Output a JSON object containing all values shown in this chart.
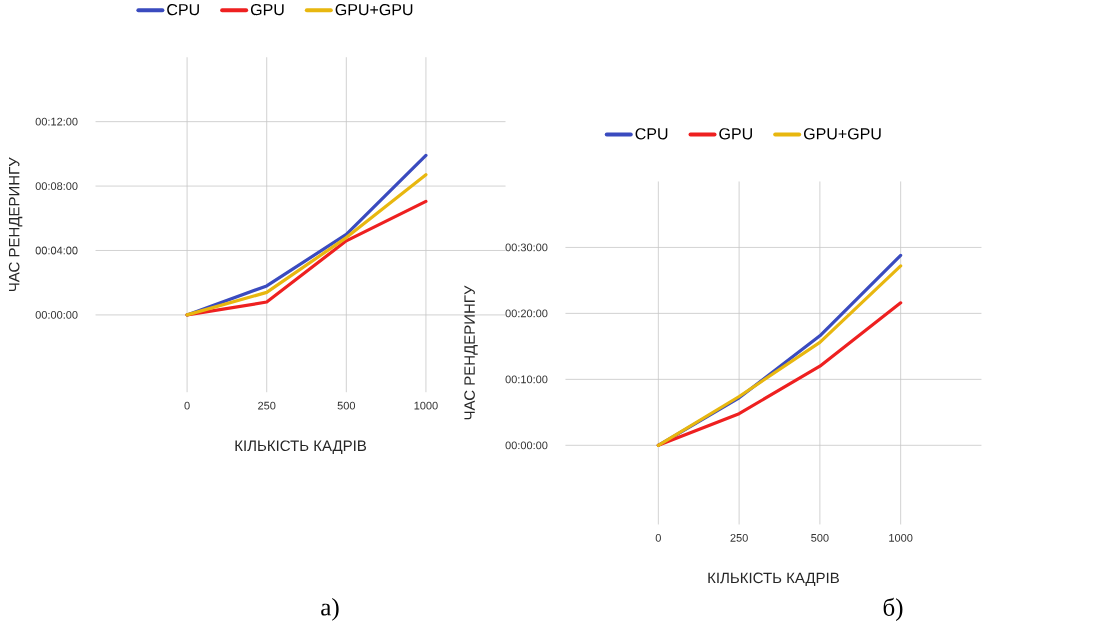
{
  "chart_data": [
    {
      "type": "line",
      "xlabel": "КІЛЬКІСТЬ КАДРІВ",
      "ylabel": "ЧАС РЕНДЕРИНГУ",
      "categories": [
        "0",
        "250",
        "500",
        "1000"
      ],
      "series": [
        {
          "name": "CPU",
          "color": "#3a4bbf",
          "values": [
            0,
            1.8,
            5.0,
            9.9
          ]
        },
        {
          "name": "GPU",
          "color": "#ee2020",
          "values": [
            0,
            0.8,
            4.6,
            7.05
          ]
        },
        {
          "name": "GPU+GPU",
          "color": "#e8b70f",
          "values": [
            0,
            1.4,
            4.8,
            8.7
          ]
        }
      ],
      "ylim": [
        -4.8,
        16
      ],
      "yticks": [
        {
          "value": 0,
          "label": "00:00:00"
        },
        {
          "value": 4,
          "label": "00:04:00"
        },
        {
          "value": 8,
          "label": "00:08:00"
        },
        {
          "value": 12,
          "label": "00:12:00"
        }
      ],
      "grid": true,
      "legend": "top",
      "marker": "none",
      "line_style": "solid",
      "annotations": [
        "а)"
      ]
    },
    {
      "type": "line",
      "xlabel": "КІЛЬКІСТЬ КАДРІВ",
      "ylabel": "ЧАС РЕНДЕРИНГУ",
      "categories": [
        "0",
        "250",
        "500",
        "1000"
      ],
      "series": [
        {
          "name": "CPU",
          "color": "#3a4bbf",
          "values": [
            0,
            7.2,
            16.6,
            28.8
          ]
        },
        {
          "name": "GPU",
          "color": "#ee2020",
          "values": [
            0,
            4.8,
            12.0,
            21.6
          ]
        },
        {
          "name": "GPU+GPU",
          "color": "#e8b70f",
          "values": [
            0,
            7.4,
            15.6,
            27.2
          ]
        }
      ],
      "ylim": [
        -12,
        40
      ],
      "yticks": [
        {
          "value": 0,
          "label": "00:00:00"
        },
        {
          "value": 10,
          "label": "00:10:00"
        },
        {
          "value": 20,
          "label": "00:20:00"
        },
        {
          "value": 30,
          "label": "00:30:00"
        }
      ],
      "grid": true,
      "legend": "top",
      "marker": "none",
      "line_style": "solid",
      "annotations": [
        "б)"
      ]
    }
  ]
}
